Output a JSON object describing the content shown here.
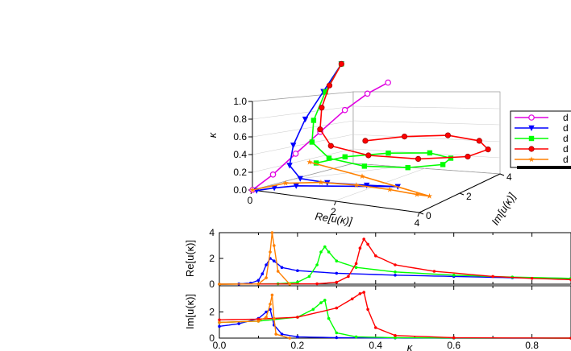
{
  "chart_data": [
    {
      "type": "line",
      "panel": "3d",
      "zlabel": "κ",
      "xlabel": "Re[u(κ)]",
      "ylabel": "Im[u(κ)]",
      "z_ticks": [
        "0.0",
        "0.2",
        "0.4",
        "0.6",
        "0.8",
        "1.0"
      ],
      "x_ticks": [
        "0",
        "2",
        "4"
      ],
      "y_ticks": [
        "0",
        "2",
        "4"
      ],
      "zlim": [
        0,
        1
      ],
      "xlim": [
        0,
        4
      ],
      "ylim": [
        0,
        4
      ],
      "legend": {
        "placement": "right",
        "entries": [
          "d",
          "d",
          "d",
          "d",
          "d"
        ]
      },
      "series": [
        {
          "color": "#e000e0",
          "marker": "open-circle",
          "points": [
            [
              0.0,
              0.0,
              0.0
            ],
            [
              0.3,
              0.4,
              0.15
            ],
            [
              0.6,
              0.9,
              0.35
            ],
            [
              0.9,
              1.5,
              0.55
            ],
            [
              1.2,
              2.1,
              0.75
            ],
            [
              1.5,
              2.6,
              0.9
            ],
            [
              1.8,
              3.0,
              1.0
            ]
          ]
        },
        {
          "color": "#0000ff",
          "marker": "filled-triangle-down",
          "points": [
            [
              0.2,
              4.0,
              1.0
            ],
            [
              0.25,
              3.0,
              0.8
            ],
            [
              0.3,
              2.0,
              0.6
            ],
            [
              0.4,
              1.2,
              0.4
            ],
            [
              0.6,
              0.6,
              0.25
            ],
            [
              1.0,
              0.3,
              0.16
            ],
            [
              1.6,
              0.4,
              0.14
            ],
            [
              2.4,
              0.7,
              0.13
            ],
            [
              3.0,
              1.0,
              0.12
            ],
            [
              1.0,
              0.1,
              0.1
            ],
            [
              0.5,
              0.05,
              0.05
            ],
            [
              0.1,
              0.0,
              0.0
            ]
          ]
        },
        {
          "color": "#00ff00",
          "marker": "filled-square",
          "points": [
            [
              0.2,
              4.0,
              1.0
            ],
            [
              0.3,
              3.0,
              0.8
            ],
            [
              0.5,
              2.0,
              0.6
            ],
            [
              0.8,
              1.3,
              0.45
            ],
            [
              1.4,
              0.9,
              0.35
            ],
            [
              2.2,
              1.0,
              0.3
            ],
            [
              3.0,
              1.5,
              0.28
            ],
            [
              3.5,
              2.2,
              0.27
            ],
            [
              3.4,
              2.8,
              0.27
            ],
            [
              2.8,
              3.0,
              0.27
            ],
            [
              2.0,
              2.6,
              0.26
            ],
            [
              1.3,
              1.9,
              0.25
            ],
            [
              0.9,
              1.3,
              0.22
            ]
          ]
        },
        {
          "color": "#ff0000",
          "marker": "half-filled-circle",
          "points": [
            [
              0.2,
              4.0,
              1.0
            ],
            [
              0.3,
              3.2,
              0.85
            ],
            [
              0.5,
              2.4,
              0.7
            ],
            [
              0.8,
              1.7,
              0.55
            ],
            [
              1.3,
              1.2,
              0.45
            ],
            [
              2.2,
              1.2,
              0.4
            ],
            [
              3.2,
              1.6,
              0.38
            ],
            [
              4.0,
              2.4,
              0.37
            ],
            [
              4.1,
              3.2,
              0.37
            ],
            [
              3.6,
              3.8,
              0.37
            ],
            [
              2.8,
              3.9,
              0.37
            ],
            [
              2.0,
              3.4,
              0.36
            ],
            [
              1.4,
              2.7,
              0.35
            ]
          ]
        },
        {
          "color": "#ff8000",
          "marker": "filled-star",
          "points": [
            [
              0.0,
              0.0,
              0.0
            ],
            [
              0.7,
              0.2,
              0.1
            ],
            [
              1.4,
              0.5,
              0.12
            ],
            [
              2.2,
              0.6,
              0.13
            ],
            [
              3.0,
              0.6,
              0.13
            ],
            [
              3.7,
              0.5,
              0.13
            ],
            [
              4.0,
              0.5,
              0.13
            ],
            [
              2.0,
              1.3,
              0.14
            ],
            [
              0.5,
              1.8,
              0.15
            ]
          ]
        }
      ]
    },
    {
      "type": "line",
      "panel": "real",
      "ylabel": "Re[u(κ)]",
      "xlim": [
        0,
        0.9
      ],
      "ylim": [
        0,
        4
      ],
      "y_ticks": [
        "0",
        "2",
        "4"
      ],
      "series": [
        {
          "color": "#0000ff",
          "x": [
            0.0,
            0.05,
            0.08,
            0.1,
            0.11,
            0.12,
            0.13,
            0.14,
            0.16,
            0.2,
            0.3,
            0.45,
            0.6,
            0.75,
            0.9
          ],
          "values": [
            0.0,
            0.02,
            0.08,
            0.3,
            0.8,
            1.5,
            2.0,
            1.8,
            1.3,
            1.05,
            0.85,
            0.7,
            0.6,
            0.5,
            0.45
          ]
        },
        {
          "color": "#00ff00",
          "x": [
            0.0,
            0.15,
            0.2,
            0.23,
            0.25,
            0.26,
            0.27,
            0.28,
            0.3,
            0.35,
            0.45,
            0.6,
            0.75,
            0.9
          ],
          "values": [
            0.0,
            0.03,
            0.15,
            0.6,
            1.5,
            2.5,
            2.9,
            2.5,
            1.8,
            1.3,
            0.95,
            0.7,
            0.55,
            0.45
          ]
        },
        {
          "color": "#ff0000",
          "x": [
            0.0,
            0.25,
            0.3,
            0.33,
            0.35,
            0.36,
            0.37,
            0.38,
            0.4,
            0.45,
            0.55,
            0.7,
            0.8,
            0.9
          ],
          "values": [
            0.0,
            0.03,
            0.15,
            0.6,
            1.6,
            2.8,
            3.5,
            3.1,
            2.2,
            1.5,
            1.0,
            0.6,
            0.45,
            0.35
          ]
        },
        {
          "color": "#ff8000",
          "x": [
            0.0,
            0.1,
            0.12,
            0.13,
            0.135,
            0.14,
            0.15,
            0.18
          ],
          "values": [
            0.0,
            0.02,
            0.5,
            2.5,
            4.0,
            3.0,
            1.0,
            0.0
          ]
        }
      ]
    },
    {
      "type": "line",
      "panel": "imag",
      "ylabel": "Im[u(κ)]",
      "xlabel": "κ",
      "xlim": [
        0,
        0.9
      ],
      "ylim": [
        0,
        4
      ],
      "x_ticks": [
        "0.0",
        "0.2",
        "0.4",
        "0.6",
        "0.8"
      ],
      "y_ticks": [
        "0",
        "2"
      ],
      "series": [
        {
          "color": "#0000ff",
          "x": [
            0.0,
            0.05,
            0.1,
            0.12,
            0.13,
            0.14,
            0.16,
            0.2,
            0.3,
            0.45,
            0.6,
            0.9
          ],
          "values": [
            0.9,
            1.1,
            1.5,
            2.0,
            2.2,
            1.0,
            0.3,
            0.1,
            0.03,
            0.01,
            0.0,
            0.0
          ]
        },
        {
          "color": "#00ff00",
          "x": [
            0.0,
            0.1,
            0.2,
            0.24,
            0.26,
            0.27,
            0.28,
            0.3,
            0.35,
            0.45,
            0.6,
            0.9
          ],
          "values": [
            1.2,
            1.3,
            1.6,
            2.2,
            2.7,
            2.9,
            1.5,
            0.4,
            0.1,
            0.03,
            0.01,
            0.0
          ]
        },
        {
          "color": "#ff0000",
          "x": [
            0.0,
            0.1,
            0.2,
            0.3,
            0.34,
            0.36,
            0.37,
            0.38,
            0.4,
            0.45,
            0.6,
            0.9
          ],
          "values": [
            1.4,
            1.45,
            1.6,
            2.3,
            3.0,
            3.4,
            3.5,
            2.2,
            0.8,
            0.2,
            0.03,
            0.0
          ]
        },
        {
          "color": "#ff8000",
          "x": [
            0.0,
            0.1,
            0.12,
            0.13,
            0.135,
            0.14,
            0.145,
            0.18
          ],
          "values": [
            1.2,
            1.3,
            1.6,
            2.6,
            3.3,
            1.5,
            0.3,
            0.0
          ]
        }
      ]
    }
  ]
}
